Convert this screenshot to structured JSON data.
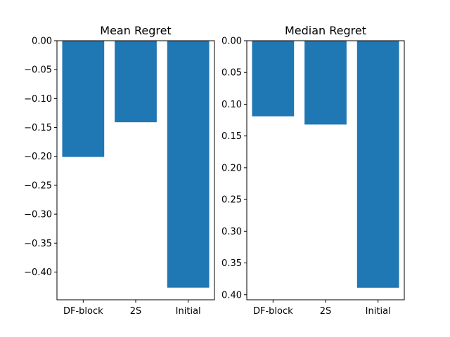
{
  "chart_data": [
    {
      "type": "bar",
      "title": "Mean Regret",
      "categories": [
        "DF-block",
        "2S",
        "Initial"
      ],
      "values": [
        -0.201,
        -0.141,
        -0.427
      ],
      "ylim": [
        -0.448,
        0.0
      ],
      "yticks": [
        0.0,
        -0.05,
        -0.1,
        -0.15,
        -0.2,
        -0.25,
        -0.3,
        -0.35,
        -0.4
      ],
      "ytick_labels": [
        "0.00",
        "−0.05",
        "−0.10",
        "−0.15",
        "−0.20",
        "−0.25",
        "−0.30",
        "−0.35",
        "−0.40"
      ],
      "xlabel": "",
      "ylabel": "",
      "grid": false,
      "bar_color": "#1f77b4"
    },
    {
      "type": "bar",
      "title": "Median Regret",
      "categories": [
        "DF-block",
        "2S",
        "Initial"
      ],
      "values": [
        0.119,
        0.132,
        0.389
      ],
      "ylim": [
        0.0,
        0.408
      ],
      "yinverted": true,
      "yticks": [
        0.0,
        0.05,
        0.1,
        0.15,
        0.2,
        0.25,
        0.3,
        0.35,
        0.4
      ],
      "ytick_labels": [
        "0.00",
        "0.05",
        "0.10",
        "0.15",
        "0.20",
        "0.25",
        "0.30",
        "0.35",
        "0.40"
      ],
      "xlabel": "",
      "ylabel": "",
      "grid": false,
      "bar_color": "#1f77b4"
    }
  ]
}
